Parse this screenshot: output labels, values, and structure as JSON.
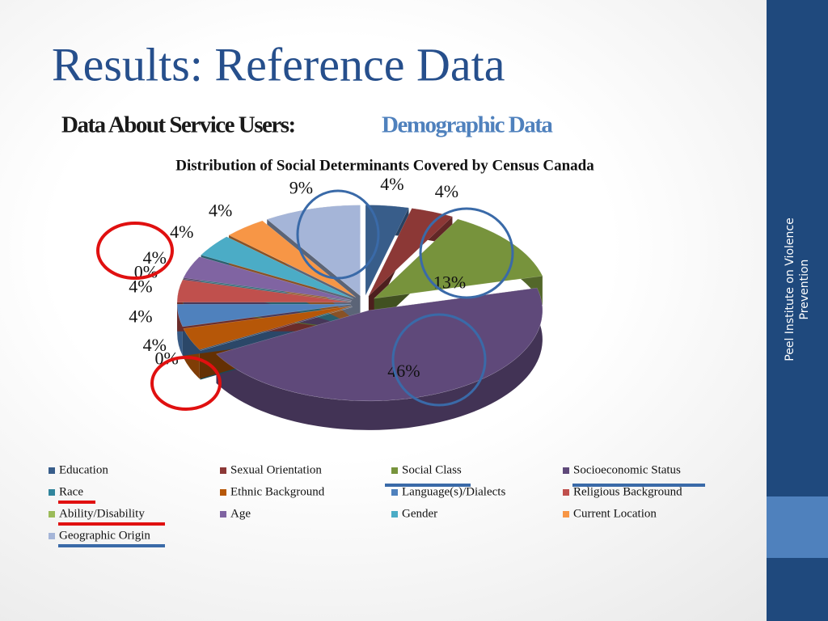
{
  "slide": {
    "title": "Results: Reference Data",
    "subtitle": "Data About Service Users:",
    "subtitle_highlight": "Demographic Data",
    "sidebar": "Peel Institute on Violence Prevention"
  },
  "chart_data": {
    "type": "pie",
    "title": "Distribution of Social Determinants Covered by Census Canada",
    "categories": [
      "Education",
      "Sexual Orientation",
      "Social Class",
      "Socioeconomic Status",
      "Race",
      "Ethnic Background",
      "Language(s)/Dialects",
      "Religious Background",
      "Ability/Disability",
      "Age",
      "Gender",
      "Current Location",
      "Geographic Origin"
    ],
    "values": [
      4,
      4,
      13,
      46,
      0,
      4,
      4,
      4,
      0,
      4,
      4,
      4,
      9
    ],
    "value_labels": [
      "4%",
      "4%",
      "13%",
      "46%",
      "0%",
      "4%",
      "4%",
      "4%",
      "0%",
      "4%",
      "4%",
      "4%",
      "9%"
    ],
    "colors": [
      "#385d8a",
      "#8c3836",
      "#77933c",
      "#5f497a",
      "#31859c",
      "#b65708",
      "#4f81bd",
      "#c0504d",
      "#9bbb59",
      "#8064a2",
      "#4bacc6",
      "#f79646",
      "#a5b5d8"
    ],
    "legend": "bottom"
  }
}
